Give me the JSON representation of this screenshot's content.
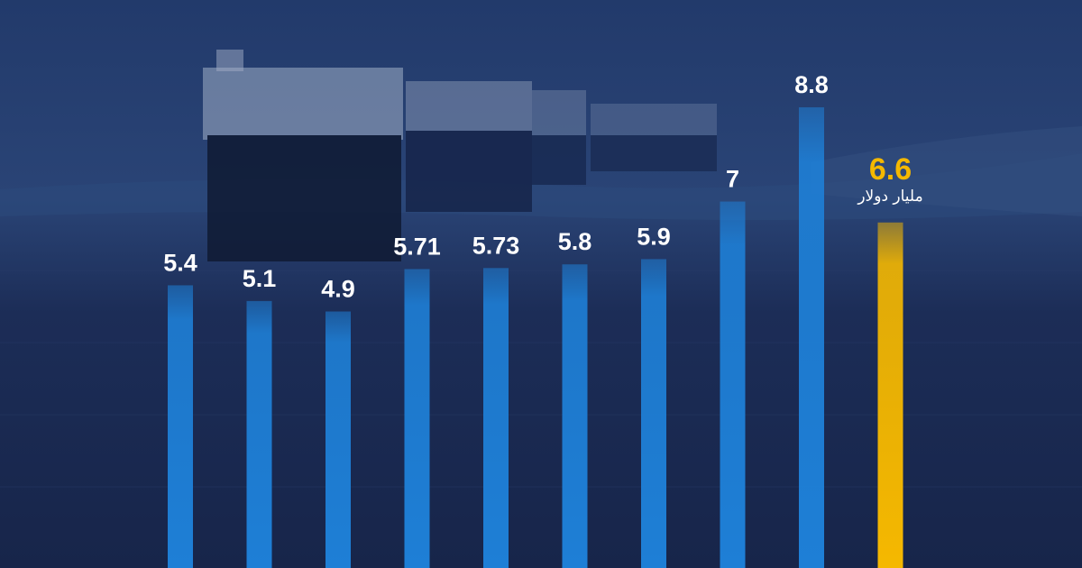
{
  "chart_data": {
    "type": "bar",
    "values": [
      5.4,
      5.1,
      4.9,
      5.71,
      5.73,
      5.8,
      5.9,
      7,
      8.8,
      6.6
    ],
    "labels": [
      "5.4",
      "5.1",
      "4.9",
      "5.71",
      "5.73",
      "5.8",
      "5.9",
      "7",
      "8.8",
      "6.6"
    ],
    "highlight_index": 9,
    "unit": "مليار دولار",
    "ylim": [
      0,
      9.3
    ],
    "colors": {
      "bar": "#1e7fd6",
      "highlight": "#f5b800",
      "label": "#ffffff"
    }
  }
}
